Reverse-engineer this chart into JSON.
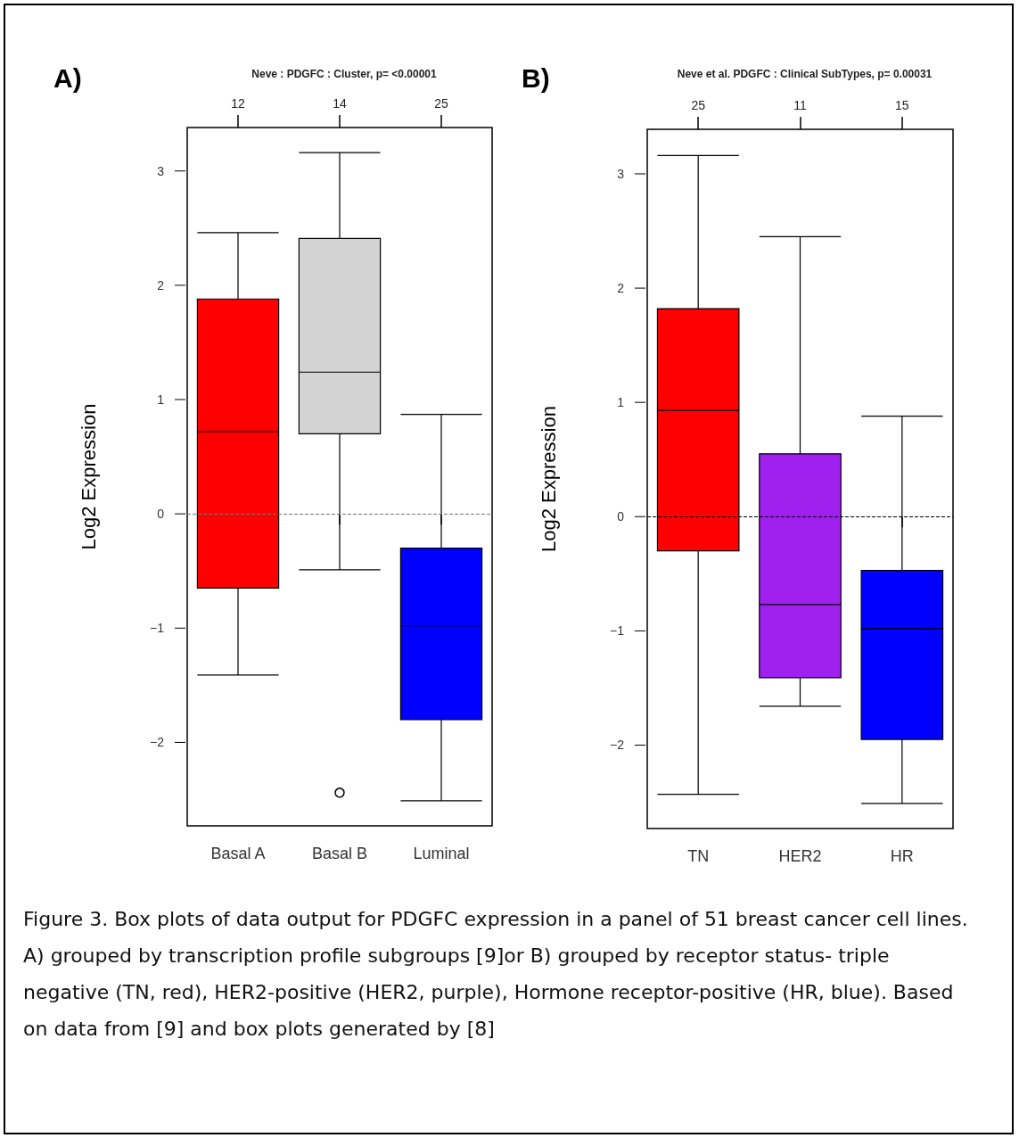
{
  "chart_data": [
    {
      "type": "box",
      "title": "Neve : PDGFC : Cluster, p= <0.00001",
      "ylabel": "Log2 Expression",
      "categories": [
        "Basal A",
        "Basal B",
        "Luminal"
      ],
      "colors": [
        "#ff0000",
        "#d3d3d3",
        "#0000ff"
      ],
      "boxes": [
        {
          "low": -1.41,
          "q1": -0.65,
          "median": 0.72,
          "q3": 1.88,
          "high": 2.46
        },
        {
          "low": -0.49,
          "q1": 0.7,
          "median": 1.24,
          "q3": 2.41,
          "high": 3.16,
          "outliers": [
            -2.44
          ]
        },
        {
          "low": -2.51,
          "q1": -1.8,
          "median": -0.98,
          "q3": -0.3,
          "high": 0.87
        }
      ],
      "ylim": [
        -2.73,
        3.38
      ],
      "yticks": [
        -2,
        -1,
        0,
        1,
        2,
        3
      ],
      "ref_lines": [
        {
          "axis": "y",
          "value": 0,
          "color": "#777777",
          "line_style": "dashed"
        }
      ],
      "annotations": [
        "A)",
        {
          "text": "12",
          "x": "Basal A"
        },
        {
          "text": "14",
          "x": "Basal B"
        },
        {
          "text": "25",
          "x": "Luminal"
        }
      ],
      "grid": false
    },
    {
      "type": "box",
      "title": "Neve et al. PDGFC : Clinical SubTypes, p= 0.00031",
      "ylabel": "Log2 Expression",
      "categories": [
        "TN",
        "HER2",
        "HR"
      ],
      "colors": [
        "#ff0000",
        "#a020f0",
        "#0000ff"
      ],
      "boxes": [
        {
          "low": -2.43,
          "q1": -0.3,
          "median": 0.93,
          "q3": 1.82,
          "high": 3.16
        },
        {
          "low": -1.66,
          "q1": -1.41,
          "median": -0.77,
          "q3": 0.55,
          "high": 2.45
        },
        {
          "low": -2.51,
          "q1": -1.95,
          "median": -0.98,
          "q3": -0.47,
          "high": 0.88
        }
      ],
      "ylim": [
        -2.73,
        3.39
      ],
      "yticks": [
        -2,
        -1,
        0,
        1,
        2,
        3
      ],
      "ref_lines": [
        {
          "axis": "y",
          "value": 0,
          "color": "#000000",
          "line_style": "dashed"
        }
      ],
      "annotations": [
        "B)",
        "Figure 3. Box plots of data output for PDGFC expression in a panel of 51 breast cancer cell lines. A) grouped by transcription profile subgroups [9]or B) grouped by receptor status- triple negative (TN, red), HER2-positive (HER2, purple), Hormone receptor-positive (HR, blue). Based on data from [9] and box plots generated by [8]",
        {
          "text": "25",
          "x": "TN"
        },
        {
          "text": "11",
          "x": "HER2"
        },
        {
          "text": "15",
          "x": "HR"
        }
      ],
      "grid": false
    }
  ]
}
